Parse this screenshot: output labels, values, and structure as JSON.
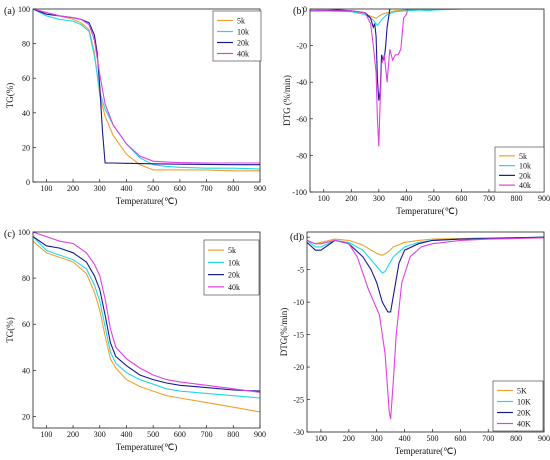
{
  "chart_data": [
    {
      "id": "a",
      "type": "line",
      "panel_label": "(a)",
      "xlabel": "Temperature(℃)",
      "ylabel": "TG(%)",
      "xlim": [
        50,
        900
      ],
      "ylim": [
        0,
        100
      ],
      "xticks": [
        100,
        200,
        300,
        400,
        500,
        600,
        700,
        800,
        900
      ],
      "yticks": [
        0,
        20,
        40,
        60,
        80,
        100
      ],
      "legend_position": "top-right",
      "series": [
        {
          "name": "5k",
          "color": "#f0a030",
          "x": [
            50,
            100,
            150,
            200,
            230,
            260,
            280,
            300,
            320,
            350,
            400,
            450,
            500,
            550,
            600,
            700,
            800,
            900
          ],
          "y": [
            100,
            98,
            96,
            94,
            92,
            88,
            75,
            50,
            38,
            27,
            16,
            10,
            7,
            7,
            7,
            7,
            6.5,
            6.5
          ]
        },
        {
          "name": "10k",
          "color": "#22d8e8",
          "x": [
            50,
            100,
            150,
            200,
            230,
            260,
            280,
            300,
            320,
            350,
            400,
            450,
            500,
            550,
            600,
            700,
            800,
            900
          ],
          "y": [
            100,
            96,
            94,
            93,
            91,
            87,
            73,
            52,
            42,
            33,
            22,
            14,
            10,
            9,
            8.5,
            8,
            8,
            7.5
          ]
        },
        {
          "name": "20k",
          "color": "#1a1a8c",
          "x": [
            50,
            100,
            150,
            200,
            230,
            260,
            280,
            290,
            300,
            310,
            320,
            340,
            400,
            500,
            600,
            700,
            800,
            900
          ],
          "y": [
            100,
            97,
            96,
            95,
            94,
            92,
            85,
            75,
            55,
            30,
            11,
            11,
            10.8,
            10.5,
            10.3,
            10.2,
            10,
            10
          ]
        },
        {
          "name": "40k",
          "color": "#e040e0",
          "x": [
            50,
            100,
            150,
            200,
            230,
            260,
            280,
            300,
            320,
            350,
            400,
            450,
            500,
            550,
            600,
            700,
            800,
            900
          ],
          "y": [
            100,
            98,
            96,
            95,
            94,
            91,
            82,
            62,
            45,
            33,
            22,
            15,
            12,
            11.5,
            11.2,
            11,
            11,
            11
          ]
        }
      ]
    },
    {
      "id": "b",
      "type": "line",
      "panel_label": "(b)",
      "xlabel": "Temperature(℃)",
      "ylabel": "DTG (%/min)",
      "xlim": [
        50,
        900
      ],
      "ylim": [
        -100,
        0
      ],
      "xticks": [
        100,
        200,
        300,
        400,
        500,
        600,
        700,
        800,
        900
      ],
      "yticks": [
        -100,
        -80,
        -60,
        -40,
        -20,
        0
      ],
      "legend_position": "bottom-right",
      "series": [
        {
          "name": "5k",
          "color": "#f0a030",
          "x": [
            50,
            100,
            200,
            240,
            270,
            290,
            300,
            310,
            330,
            360,
            400,
            500,
            600,
            700,
            800,
            900
          ],
          "y": [
            0,
            -0.5,
            -1,
            -2,
            -4,
            -5,
            -4,
            -3,
            -2,
            -1,
            -0.5,
            -0.3,
            0,
            0,
            0,
            0
          ]
        },
        {
          "name": "10k",
          "color": "#22d8e8",
          "x": [
            50,
            100,
            200,
            250,
            280,
            295,
            305,
            315,
            330,
            360,
            400,
            450,
            480,
            500,
            600,
            700,
            800,
            900
          ],
          "y": [
            -1,
            -1,
            -1.5,
            -3,
            -6,
            -9,
            -7,
            -5,
            -3,
            -1.5,
            -1,
            -0.5,
            -1,
            -0.5,
            0,
            0,
            0,
            0
          ]
        },
        {
          "name": "20k",
          "color": "#1a1a8c",
          "x": [
            50,
            100,
            150,
            200,
            250,
            270,
            280,
            285,
            290,
            295,
            300,
            305,
            310,
            315,
            320,
            325,
            330,
            335,
            340,
            350,
            360,
            400,
            500,
            600,
            700,
            800,
            900
          ],
          "y": [
            -1,
            -1,
            -0.5,
            -1,
            -2,
            -5,
            -10,
            -8,
            -15,
            -38,
            -50,
            -45,
            -25,
            -28,
            -27,
            -20,
            -10,
            -5,
            0,
            2,
            1,
            0,
            0,
            0,
            0,
            0,
            0
          ]
        },
        {
          "name": "40k",
          "color": "#e040e0",
          "x": [
            50,
            100,
            150,
            200,
            250,
            270,
            280,
            290,
            295,
            300,
            305,
            310,
            320,
            330,
            340,
            350,
            360,
            370,
            380,
            390,
            400,
            405,
            410,
            420,
            450,
            500,
            600,
            700,
            800,
            900
          ],
          "y": [
            -1,
            -1,
            -1,
            -1,
            -2,
            -8,
            -20,
            -35,
            -60,
            -75,
            -50,
            -30,
            -25,
            -40,
            -22,
            -28,
            -25,
            -25,
            -22,
            -5,
            -3,
            0,
            1,
            0,
            0,
            0,
            0,
            0,
            0,
            0
          ]
        }
      ]
    },
    {
      "id": "c",
      "type": "line",
      "panel_label": "(c)",
      "xlabel": "Temperature(℃)",
      "ylabel": "TG(%)",
      "xlim": [
        50,
        900
      ],
      "ylim": [
        15,
        100
      ],
      "xticks": [
        100,
        200,
        300,
        400,
        500,
        600,
        700,
        800,
        900
      ],
      "yticks": [
        20,
        40,
        60,
        80,
        100
      ],
      "legend_position": "top-right",
      "series": [
        {
          "name": "5k",
          "color": "#f0a030",
          "x": [
            50,
            100,
            150,
            200,
            250,
            280,
            300,
            320,
            340,
            360,
            400,
            450,
            500,
            550,
            600,
            700,
            800,
            900
          ],
          "y": [
            96,
            91,
            89,
            87,
            82,
            74,
            66,
            55,
            45,
            41,
            36,
            33,
            31,
            29,
            28,
            26,
            24,
            22
          ]
        },
        {
          "name": "10k",
          "color": "#22d8e8",
          "x": [
            50,
            100,
            150,
            200,
            250,
            280,
            300,
            320,
            340,
            360,
            400,
            450,
            500,
            550,
            600,
            700,
            800,
            900
          ],
          "y": [
            98,
            92,
            90,
            88,
            84,
            77,
            70,
            59,
            48,
            43,
            39,
            36,
            34,
            32,
            31,
            30,
            29,
            28
          ]
        },
        {
          "name": "20k",
          "color": "#1a1a8c",
          "x": [
            50,
            100,
            150,
            200,
            250,
            280,
            300,
            320,
            340,
            360,
            400,
            450,
            500,
            550,
            600,
            700,
            800,
            900
          ],
          "y": [
            98,
            94,
            93,
            91,
            87,
            81,
            75,
            64,
            52,
            46,
            42,
            38,
            36,
            34.5,
            33.5,
            32.5,
            31.5,
            31
          ]
        },
        {
          "name": "40k",
          "color": "#e040e0",
          "x": [
            50,
            100,
            150,
            200,
            250,
            280,
            300,
            320,
            340,
            360,
            400,
            450,
            500,
            550,
            600,
            700,
            800,
            900
          ],
          "y": [
            100,
            98,
            96,
            95,
            91,
            86,
            81,
            71,
            58,
            50,
            45,
            41,
            38,
            36,
            35,
            33.5,
            32,
            30.5
          ]
        }
      ]
    },
    {
      "id": "d",
      "type": "line",
      "panel_label": "(d)",
      "xlabel": "Temperature(℃)",
      "ylabel": "DTG(%/min)",
      "xlim": [
        50,
        900
      ],
      "ylim": [
        -30,
        0.8
      ],
      "xticks": [
        100,
        200,
        300,
        400,
        500,
        600,
        700,
        800,
        900
      ],
      "yticks": [
        -30,
        -25,
        -20,
        -15,
        -10,
        -5,
        0
      ],
      "legend_position": "bottom-right",
      "series": [
        {
          "name": "5K",
          "color": "#f0a030",
          "x": [
            50,
            80,
            100,
            150,
            200,
            250,
            280,
            300,
            320,
            340,
            360,
            400,
            450,
            500,
            600,
            700,
            800,
            900
          ],
          "y": [
            -0.5,
            -1,
            -0.8,
            -0.3,
            -0.5,
            -1.2,
            -2,
            -2.5,
            -2.8,
            -2.3,
            -1.5,
            -0.8,
            -0.5,
            -0.3,
            -0.2,
            -0.1,
            -0.1,
            0
          ]
        },
        {
          "name": "10K",
          "color": "#22d8e8",
          "x": [
            50,
            80,
            100,
            150,
            200,
            250,
            280,
            300,
            320,
            330,
            340,
            360,
            400,
            450,
            500,
            600,
            700,
            800,
            900
          ],
          "y": [
            -0.5,
            -1.5,
            -1.5,
            -0.5,
            -0.8,
            -2,
            -3.5,
            -4.5,
            -5.5,
            -5.3,
            -4.5,
            -3,
            -1.5,
            -0.8,
            -0.5,
            -0.3,
            -0.2,
            -0.1,
            0
          ]
        },
        {
          "name": "20K",
          "color": "#1a1a8c",
          "x": [
            50,
            80,
            100,
            150,
            200,
            250,
            280,
            300,
            320,
            340,
            350,
            360,
            380,
            400,
            450,
            500,
            600,
            700,
            800,
            900
          ],
          "y": [
            -0.8,
            -2,
            -2,
            -0.5,
            -1,
            -3,
            -5,
            -7,
            -10,
            -11.5,
            -11.5,
            -9,
            -4,
            -2,
            -1,
            -0.5,
            -0.3,
            -0.2,
            -0.1,
            0
          ]
        },
        {
          "name": "40K",
          "color": "#e040e0",
          "x": [
            50,
            80,
            100,
            150,
            200,
            230,
            250,
            270,
            290,
            310,
            330,
            345,
            350,
            360,
            370,
            390,
            420,
            460,
            500,
            600,
            700,
            800,
            900
          ],
          "y": [
            -0.5,
            -1,
            -1,
            -0.5,
            -1,
            -3,
            -5.5,
            -8,
            -10,
            -12,
            -18,
            -27,
            -28,
            -22,
            -15,
            -7,
            -3,
            -1.5,
            -1,
            -0.5,
            -0.3,
            -0.2,
            -0.1
          ]
        }
      ]
    }
  ]
}
